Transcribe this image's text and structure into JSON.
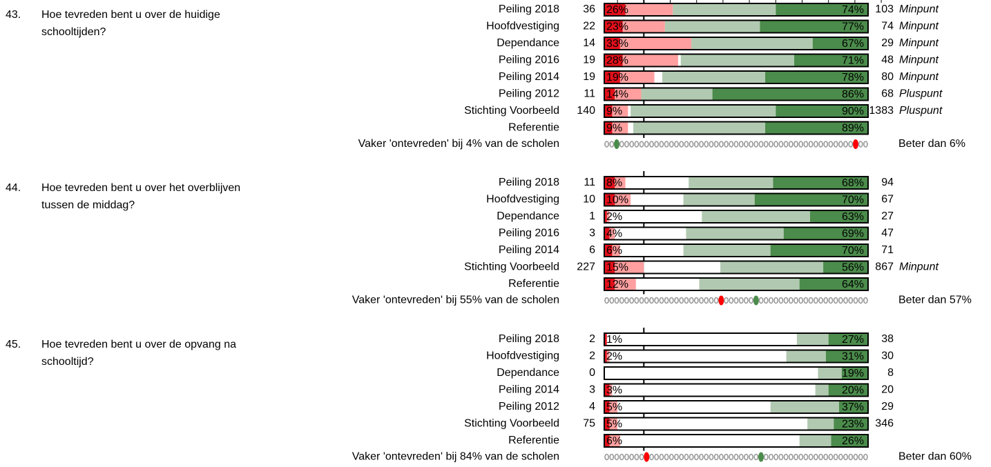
{
  "colors": [
    "#e3101a",
    "#ff9f9f",
    "#ffffff",
    "#b1c9b1",
    "#4b8b4b"
  ],
  "dot_colors": {
    "plain": "#9a9a9a",
    "red": "#ff0000",
    "green": "#4b8b4b"
  },
  "questions": [
    {
      "number": "43.",
      "text": [
        "Hoe tevreden bent u over de huidige",
        "schooltijden?"
      ],
      "rows": [
        {
          "label": "Peiling 2018",
          "n_neg": 36,
          "neg": "26%",
          "pos": "74%",
          "n_pos": 103,
          "note": "Minpunt",
          "segments": [
            8,
            18,
            0,
            39,
            35
          ]
        },
        {
          "label": "Hoofdvestiging",
          "n_neg": 22,
          "neg": "23%",
          "pos": "77%",
          "n_pos": 74,
          "note": "Minpunt",
          "segments": [
            7,
            16,
            0,
            36,
            41
          ]
        },
        {
          "label": "Dependance",
          "n_neg": 14,
          "neg": "33%",
          "pos": "67%",
          "n_pos": 29,
          "note": "Minpunt",
          "segments": [
            6,
            27,
            0,
            46,
            21
          ]
        },
        {
          "label": "Peiling 2016",
          "n_neg": 19,
          "neg": "28%",
          "pos": "71%",
          "n_pos": 48,
          "note": "Minpunt",
          "segments": [
            7,
            21,
            1,
            43,
            28
          ]
        },
        {
          "label": "Peiling 2014",
          "n_neg": 19,
          "neg": "19%",
          "pos": "78%",
          "n_pos": 80,
          "note": "Minpunt",
          "segments": [
            6,
            13,
            3,
            39,
            39
          ]
        },
        {
          "label": "Peiling 2012",
          "n_neg": 11,
          "neg": "14%",
          "pos": "86%",
          "n_pos": 68,
          "note": "Pluspunt",
          "segments": [
            4,
            10,
            0,
            27,
            59
          ]
        },
        {
          "label": "Stichting Voorbeeld",
          "n_neg": 140,
          "neg": "9%",
          "pos": "90%",
          "n_pos": 1383,
          "note": "Pluspunt",
          "segments": [
            3,
            6,
            1,
            55,
            35
          ]
        },
        {
          "label": "Referentie",
          "neg": "9%",
          "pos": "89%",
          "segments": [
            3,
            6,
            2,
            50,
            39
          ]
        }
      ],
      "summary": "Vaker 'ontevreden' bij 4% van de scholen",
      "better": "Beter dan 6%",
      "dots": {
        "count": 53,
        "red": 50,
        "green": 2
      }
    },
    {
      "number": "44.",
      "text": [
        "Hoe tevreden bent u over het overblijven",
        "tussen de middag?"
      ],
      "rows": [
        {
          "label": "Peiling 2018",
          "n_neg": 11,
          "neg": "8%",
          "pos": "68%",
          "n_pos": 94,
          "segments": [
            4,
            4,
            24,
            32,
            36
          ]
        },
        {
          "label": "Hoofdvestiging",
          "n_neg": 10,
          "neg": "10%",
          "pos": "70%",
          "n_pos": 67,
          "segments": [
            4,
            6,
            20,
            27,
            43
          ]
        },
        {
          "label": "Dependance",
          "n_neg": 1,
          "neg": "2%",
          "pos": "63%",
          "n_pos": 27,
          "segments": [
            1,
            1,
            35,
            41,
            22
          ]
        },
        {
          "label": "Peiling 2016",
          "n_neg": 3,
          "neg": "4%",
          "pos": "69%",
          "n_pos": 47,
          "segments": [
            2,
            2,
            27,
            37,
            32
          ]
        },
        {
          "label": "Peiling 2014",
          "n_neg": 6,
          "neg": "6%",
          "pos": "70%",
          "n_pos": 71,
          "segments": [
            3,
            3,
            24,
            33,
            37
          ]
        },
        {
          "label": "Stichting Voorbeeld",
          "n_neg": 227,
          "neg": "15%",
          "pos": "56%",
          "n_pos": 867,
          "note": "Minpunt",
          "segments": [
            4,
            11,
            29,
            39,
            17
          ]
        },
        {
          "label": "Referentie",
          "neg": "12%",
          "pos": "64%",
          "segments": [
            4,
            8,
            24,
            38,
            26
          ]
        }
      ],
      "summary": "Vaker 'ontevreden' bij 55% van de scholen",
      "better": "Beter dan 57%",
      "dots": {
        "count": 53,
        "red": 23,
        "green": 30
      }
    },
    {
      "number": "45.",
      "text": [
        "Hoe tevreden bent u over de opvang na",
        "schooltijd?"
      ],
      "rows": [
        {
          "label": "Peiling 2018",
          "n_neg": 2,
          "neg": "1%",
          "pos": "27%",
          "n_pos": 38,
          "segments": [
            1,
            0,
            72,
            12,
            15
          ]
        },
        {
          "label": "Hoofdvestiging",
          "n_neg": 2,
          "neg": "2%",
          "pos": "31%",
          "n_pos": 30,
          "segments": [
            1,
            1,
            67,
            15,
            16
          ]
        },
        {
          "label": "Dependance",
          "n_neg": 0,
          "pos": "19%",
          "n_pos": 8,
          "segments": [
            0,
            0,
            81,
            9,
            10
          ]
        },
        {
          "label": "Peiling 2014",
          "n_neg": 3,
          "neg": "3%",
          "pos": "20%",
          "n_pos": 20,
          "segments": [
            2,
            1,
            77,
            5,
            15
          ]
        },
        {
          "label": "Peiling 2012",
          "n_neg": 4,
          "neg": "5%",
          "pos": "37%",
          "n_pos": 29,
          "segments": [
            2,
            3,
            58,
            26,
            11
          ]
        },
        {
          "label": "Stichting Voorbeeld",
          "n_neg": 75,
          "neg": "5%",
          "pos": "23%",
          "n_pos": 346,
          "segments": [
            2,
            3,
            72,
            10,
            13
          ]
        },
        {
          "label": "Referentie",
          "neg": "6%",
          "pos": "26%",
          "segments": [
            2,
            4,
            68,
            12,
            14
          ]
        }
      ],
      "summary": "Vaker 'ontevreden' bij 84% van de scholen",
      "better": "Beter dan 60%",
      "dots": {
        "count": 53,
        "red": 8,
        "green": 31
      }
    }
  ]
}
